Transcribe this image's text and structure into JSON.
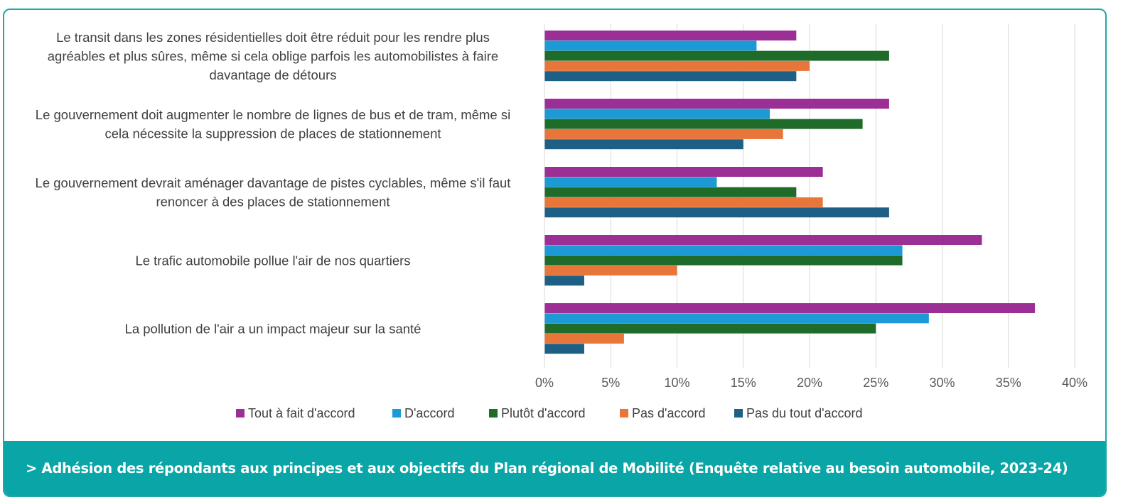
{
  "chart_data": {
    "type": "bar",
    "orientation": "horizontal",
    "categories": [
      [
        "Le transit dans les zones résidentielles doit être réduit pour les rendre plus",
        "agréables et plus sûres, même si cela oblige parfois les automobilistes à faire",
        "davantage de détours"
      ],
      [
        "Le gouvernement doit augmenter le nombre de lignes de bus et de tram, même si",
        "cela nécessite la suppression de places de stationnement"
      ],
      [
        "Le gouvernement devrait aménager davantage de pistes cyclables, même s'il faut",
        "renoncer à des places de stationnement"
      ],
      [
        "Le trafic automobile pollue l'air de nos quartiers"
      ],
      [
        "La pollution de l'air a un impact majeur sur la santé"
      ]
    ],
    "series": [
      {
        "name": "Tout à fait d'accord",
        "color": "#9b2f96",
        "values": [
          19,
          26,
          21,
          33,
          37
        ]
      },
      {
        "name": "D'accord",
        "color": "#1b9ad6",
        "values": [
          16,
          17,
          13,
          27,
          29
        ]
      },
      {
        "name": "Plutôt d'accord",
        "color": "#1f6b2a",
        "values": [
          26,
          24,
          19,
          27,
          25
        ]
      },
      {
        "name": "Pas d'accord",
        "color": "#e8763a",
        "values": [
          20,
          18,
          21,
          10,
          6
        ]
      },
      {
        "name": "Pas du tout d'accord",
        "color": "#1d5f85",
        "values": [
          19,
          15,
          26,
          3,
          3
        ]
      }
    ],
    "xlim": [
      0,
      40
    ],
    "xticks": [
      0,
      5,
      10,
      15,
      20,
      25,
      30,
      35,
      40
    ],
    "tick_suffix": "%",
    "grid": true,
    "legend": "bottom"
  },
  "caption": "> Adhésion des répondants aux principes et aux objectifs du Plan régional de Mobilité (Enquête relative au besoin automobile, 2023-24)"
}
